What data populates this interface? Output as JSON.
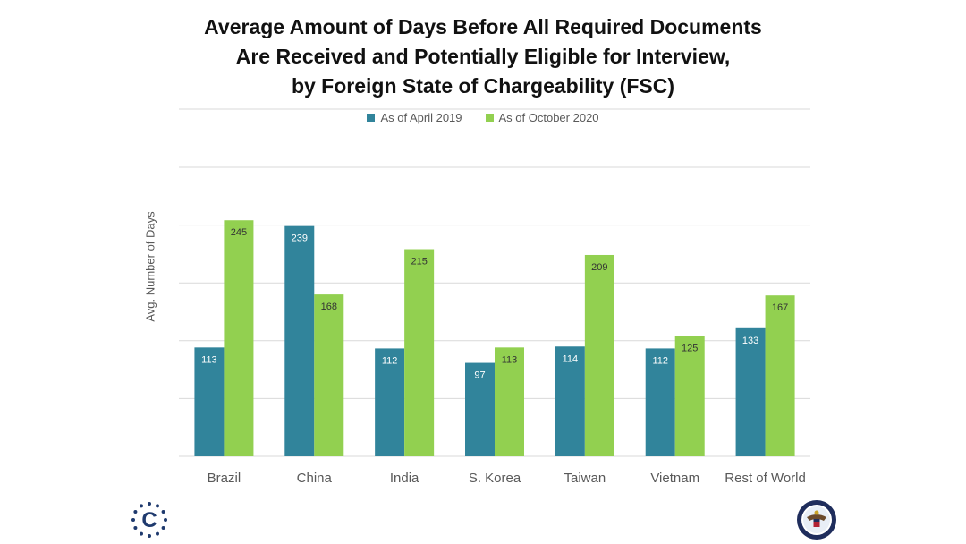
{
  "title_lines": [
    "Average Amount of Days Before All Required Documents",
    "Are Received and Potentially Eligible for Interview,",
    "by Foreign State of Chargeability (FSC)"
  ],
  "colors": {
    "series1": "#31849b",
    "series2": "#92d050",
    "grid": "#d9d9d9",
    "text": "#595959"
  },
  "logos": {
    "left_letter": "C",
    "right_icon": "us-department-of-state-seal-icon"
  },
  "chart_data": {
    "type": "bar",
    "title": "Average Amount of Days Before All Required Documents Are Received and Potentially Eligible for Interview, by Foreign State of Chargeability (FSC)",
    "categories": [
      "Brazil",
      "China",
      "India",
      "S. Korea",
      "Taiwan",
      "Vietnam",
      "Rest of World"
    ],
    "series": [
      {
        "name": "As of April 2019",
        "values": [
          113,
          239,
          112,
          97,
          114,
          112,
          133
        ]
      },
      {
        "name": "As of October 2020",
        "values": [
          245,
          168,
          215,
          113,
          209,
          125,
          167
        ]
      }
    ],
    "xlabel": "",
    "ylabel": "Avg. Number of Days",
    "ylim": [
      0,
      300
    ],
    "grid": true,
    "legend_position": "top"
  }
}
